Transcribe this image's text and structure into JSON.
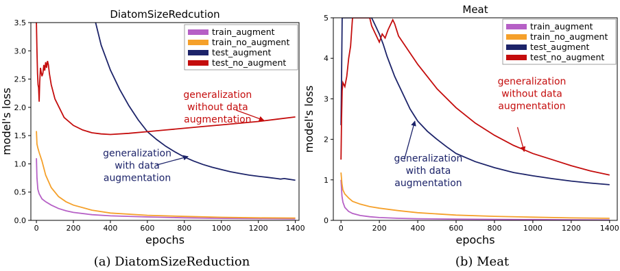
{
  "chart_data": [
    {
      "type": "line",
      "title": "DiatomSizeRedcution",
      "caption": "(a) DiatomSizeReduction",
      "xlabel": "epochs",
      "ylabel": "model's loss",
      "xlim": [
        -30,
        1420
      ],
      "ylim": [
        0,
        3.5
      ],
      "xticks": [
        0,
        200,
        400,
        600,
        800,
        1000,
        1200,
        1400
      ],
      "yticks": [
        0.0,
        0.5,
        1.0,
        1.5,
        2.0,
        2.5,
        3.0,
        3.5
      ],
      "ytick_decimals": 1,
      "grid": false,
      "legend_position": "top-right",
      "series": [
        {
          "name": "train_augment",
          "color": "#b660c6",
          "x": [
            0,
            3,
            8,
            15,
            30,
            50,
            80,
            120,
            160,
            200,
            300,
            400,
            600,
            800,
            1000,
            1200,
            1400
          ],
          "y": [
            1.1,
            0.75,
            0.55,
            0.47,
            0.38,
            0.33,
            0.27,
            0.21,
            0.17,
            0.14,
            0.1,
            0.08,
            0.06,
            0.045,
            0.035,
            0.03,
            0.025
          ]
        },
        {
          "name": "train_no_augment",
          "color": "#f5a02a",
          "x": [
            0,
            3,
            8,
            15,
            30,
            50,
            80,
            120,
            160,
            200,
            300,
            400,
            600,
            800,
            1000,
            1200,
            1400
          ],
          "y": [
            1.58,
            1.35,
            1.28,
            1.2,
            1.05,
            0.8,
            0.58,
            0.42,
            0.33,
            0.27,
            0.18,
            0.13,
            0.09,
            0.07,
            0.055,
            0.045,
            0.04
          ]
        },
        {
          "name": "test_augment",
          "color": "#1c2369",
          "x": [
            320,
            350,
            400,
            450,
            500,
            550,
            600,
            650,
            700,
            750,
            800,
            850,
            900,
            950,
            1000,
            1050,
            1100,
            1150,
            1200,
            1250,
            1300,
            1320,
            1340,
            1360,
            1380,
            1400
          ],
          "y": [
            3.5,
            3.1,
            2.66,
            2.32,
            2.03,
            1.78,
            1.57,
            1.43,
            1.31,
            1.21,
            1.12,
            1.05,
            0.99,
            0.94,
            0.9,
            0.86,
            0.83,
            0.8,
            0.78,
            0.76,
            0.74,
            0.73,
            0.74,
            0.73,
            0.72,
            0.71
          ]
        },
        {
          "name": "test_no_augment",
          "color": "#c40c0c",
          "x": [
            0,
            3,
            6,
            9,
            12,
            15,
            18,
            22,
            26,
            30,
            35,
            40,
            45,
            50,
            55,
            60,
            65,
            70,
            80,
            100,
            150,
            200,
            250,
            300,
            350,
            400,
            500,
            600,
            700,
            800,
            900,
            1000,
            1100,
            1200,
            1300,
            1400
          ],
          "y": [
            3.5,
            3.0,
            2.6,
            2.4,
            2.35,
            2.1,
            2.45,
            2.7,
            2.62,
            2.55,
            2.6,
            2.75,
            2.65,
            2.8,
            2.7,
            2.82,
            2.75,
            2.6,
            2.4,
            2.15,
            1.82,
            1.68,
            1.6,
            1.55,
            1.53,
            1.52,
            1.54,
            1.57,
            1.6,
            1.63,
            1.66,
            1.69,
            1.72,
            1.75,
            1.79,
            1.83
          ]
        }
      ],
      "annotations": [
        {
          "lines": [
            "generalization",
            "without data",
            "augmentation"
          ],
          "color": "#c40c0c",
          "text_anchor": [
            980,
            2.17
          ],
          "arrow_from": [
            1080,
            1.95
          ],
          "arrow_to": [
            1230,
            1.77
          ]
        },
        {
          "lines": [
            "generalization",
            "with data",
            "augmentation"
          ],
          "color": "#1c2369",
          "text_anchor": [
            545,
            1.13
          ],
          "arrow_from": [
            650,
            0.98
          ],
          "arrow_to": [
            820,
            1.13
          ]
        }
      ]
    },
    {
      "type": "line",
      "title": "Meat",
      "caption": "(b) Meat",
      "xlabel": "epochs",
      "ylabel": "model's loss",
      "xlim": [
        -40,
        1440
      ],
      "ylim": [
        0,
        5
      ],
      "xticks": [
        0,
        200,
        400,
        600,
        800,
        1000,
        1200,
        1400
      ],
      "yticks": [
        0,
        1,
        2,
        3,
        4,
        5
      ],
      "ytick_decimals": 0,
      "grid": false,
      "legend_position": "top-right",
      "series": [
        {
          "name": "train_augment",
          "color": "#b660c6",
          "x": [
            0,
            5,
            10,
            20,
            40,
            60,
            100,
            150,
            200,
            300,
            400,
            600,
            800,
            1000,
            1200,
            1400
          ],
          "y": [
            1.0,
            0.6,
            0.45,
            0.32,
            0.22,
            0.17,
            0.12,
            0.09,
            0.07,
            0.05,
            0.04,
            0.03,
            0.025,
            0.02,
            0.015,
            0.01
          ]
        },
        {
          "name": "train_no_augment",
          "color": "#f5a02a",
          "x": [
            0,
            5,
            10,
            20,
            40,
            60,
            100,
            150,
            200,
            300,
            400,
            600,
            800,
            1000,
            1200,
            1400
          ],
          "y": [
            1.18,
            0.9,
            0.75,
            0.65,
            0.55,
            0.47,
            0.4,
            0.34,
            0.3,
            0.24,
            0.19,
            0.13,
            0.1,
            0.08,
            0.06,
            0.05
          ]
        },
        {
          "name": "test_augment",
          "color": "#1c2369",
          "x": [
            0,
            3,
            6,
            10,
            160,
            180,
            200,
            220,
            240,
            260,
            280,
            300,
            320,
            340,
            360,
            380,
            400,
            450,
            500,
            550,
            600,
            700,
            800,
            900,
            1000,
            1100,
            1200,
            1300,
            1400
          ],
          "y": [
            2.35,
            3.5,
            5.0,
            5.0,
            5.0,
            4.8,
            4.6,
            4.35,
            4.05,
            3.8,
            3.55,
            3.35,
            3.15,
            2.95,
            2.75,
            2.6,
            2.45,
            2.2,
            2.0,
            1.82,
            1.65,
            1.45,
            1.3,
            1.18,
            1.1,
            1.03,
            0.97,
            0.92,
            0.88
          ]
        },
        {
          "name": "test_no_augment",
          "color": "#c40c0c",
          "x": [
            0,
            3,
            6,
            10,
            20,
            30,
            40,
            50,
            60,
            150,
            160,
            180,
            200,
            215,
            230,
            245,
            260,
            270,
            280,
            290,
            300,
            350,
            400,
            450,
            500,
            600,
            700,
            800,
            900,
            1000,
            1100,
            1200,
            1300,
            1400
          ],
          "y": [
            1.5,
            2.5,
            3.2,
            3.4,
            3.3,
            3.55,
            4.0,
            4.3,
            5.0,
            5.0,
            4.8,
            4.6,
            4.4,
            4.6,
            4.5,
            4.7,
            4.85,
            4.95,
            4.85,
            4.7,
            4.55,
            4.2,
            3.85,
            3.55,
            3.25,
            2.78,
            2.4,
            2.1,
            1.85,
            1.65,
            1.5,
            1.35,
            1.22,
            1.12
          ]
        }
      ],
      "annotations": [
        {
          "lines": [
            "generalization",
            "without data",
            "augmentation"
          ],
          "color": "#c40c0c",
          "text_anchor": [
            995,
            3.35
          ],
          "arrow_from": [
            920,
            2.3
          ],
          "arrow_to": [
            955,
            1.7
          ]
        },
        {
          "lines": [
            "generalization",
            "with data",
            "augmentation"
          ],
          "color": "#1c2369",
          "text_anchor": [
            455,
            1.45
          ],
          "arrow_from": [
            330,
            1.5
          ],
          "arrow_to": [
            385,
            2.45
          ]
        }
      ]
    }
  ]
}
